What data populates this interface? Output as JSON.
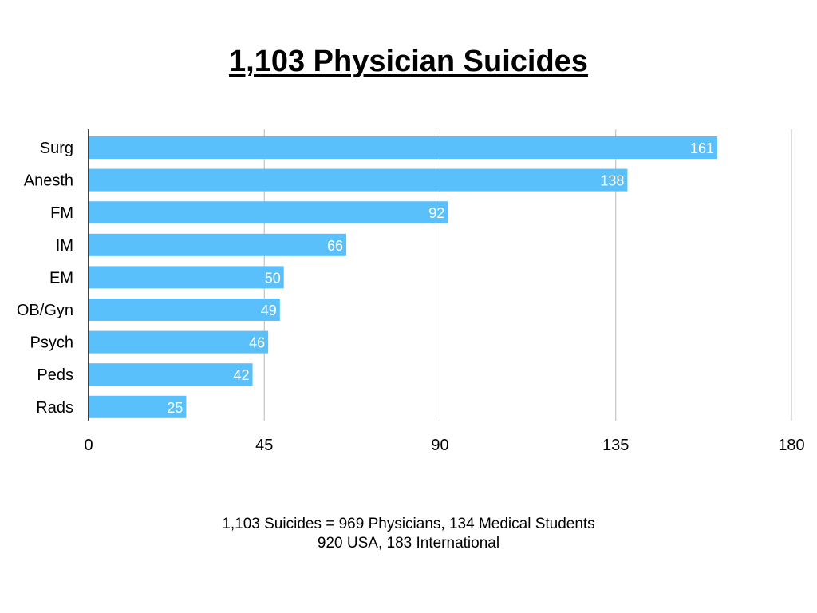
{
  "chart_data": {
    "type": "bar",
    "orientation": "horizontal",
    "title": "1,103 Physician Suicides",
    "categories": [
      "Surg",
      "Anesth",
      "FM",
      "IM",
      "EM",
      "OB/Gyn",
      "Psych",
      "Peds",
      "Rads"
    ],
    "values": [
      161,
      138,
      92,
      66,
      50,
      49,
      46,
      42,
      25
    ],
    "data_labels": [
      "161",
      "138",
      "92",
      "66",
      "50",
      "49",
      "46",
      "42",
      "25"
    ],
    "xlim": [
      0,
      180
    ],
    "xticks": [
      "0",
      "45",
      "90",
      "135",
      "180"
    ],
    "grid": true,
    "legend": "none",
    "bar_color": "#5ac0fb",
    "label_color": "#ffffff",
    "grid_color": "#b8b8b8"
  },
  "notes": {
    "line1": "1,103 Suicides = 969 Physicians, 134 Medical Students",
    "line2": "920 USA, 183 International"
  }
}
